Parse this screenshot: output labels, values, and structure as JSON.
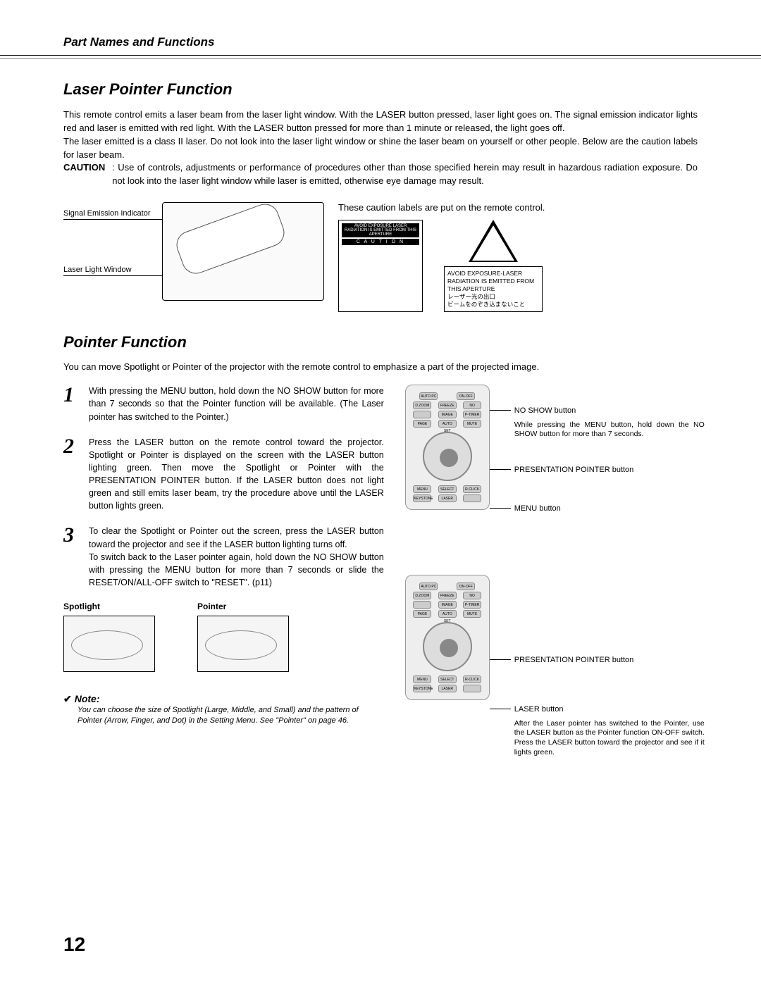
{
  "header": {
    "section": "Part Names and Functions"
  },
  "laser": {
    "title": "Laser Pointer Function",
    "para1": "This remote control emits a laser beam from the laser light window.  With the LASER button pressed, laser light goes on. The signal emission indicator lights red and laser is emitted with red light.  With the LASER button pressed for more than 1 minute or released, the light goes off.",
    "para2": "The laser emitted is a class II laser.  Do not look into the laser light window or shine the laser beam on yourself or other people.  Below are the caution labels for laser beam.",
    "caution_lead": "CAUTION",
    "caution_body": ": Use of controls, adjustments or performance of procedures other than those specified herein may result in hazardous radiation exposure.  Do not look into the laser light window while laser is emitted, otherwise eye damage may result.",
    "sig_label": "Signal Emission Indicator",
    "window_label": "Laser Light Window",
    "caution_label_text": "These caution labels are put on the remote control.",
    "sticker_top": "AVOID EXPOSURE LASER RADIATION IS EMITTED FROM THIS APERTURE",
    "sticker_band": "C A U T I O N",
    "triangle_text": "AVOID EXPOSURE-LASER RADIATION IS EMITTED FROM THIS APERTURE\nレーザー光の出口\nビームをのぞき込まないこと"
  },
  "pointer": {
    "title": "Pointer Function",
    "intro": "You can move Spotlight or Pointer of the projector with the remote control to emphasize a part of the projected image.",
    "steps": [
      {
        "n": "1",
        "text": "With pressing the MENU button, hold down the NO SHOW button for more than 7 seconds so that the Pointer function will be available. (The Laser pointer has switched to the Pointer.)"
      },
      {
        "n": "2",
        "text": "Press the LASER button on the remote control toward the projector. Spotlight or Pointer is displayed on the screen with the LASER button lighting green.  Then move the Spotlight or Pointer with the PRESENTATION POINTER button.  If the LASER button does not light green and still emits laser beam, try the procedure above until the LASER button lights green."
      },
      {
        "n": "3",
        "text": "To clear the Spotlight or Pointer out the screen, press the LASER button toward the projector and see if the LASER button lighting turns off.\nTo switch back to the Laser pointer again, hold down the NO SHOW button with pressing the MENU button for more than 7 seconds or slide the RESET/ON/ALL-OFF switch to \"RESET\".  (p11)"
      }
    ],
    "spotlight_label": "Spotlight",
    "pointer_label": "Pointer",
    "note_label": "Note:",
    "note_body": "You can choose the size of Spotlight (Large, Middle, and Small) and the pattern of Pointer (Arrow, Finger, and Dot) in the Setting Menu.  See \"Pointer\" on page 46."
  },
  "callouts": {
    "no_show": "NO SHOW button",
    "no_show_sub": "While pressing the MENU button, hold down the NO SHOW button for more than 7 seconds.",
    "pres_pointer": "PRESENTATION POINTER button",
    "menu": "MENU button",
    "laser": "LASER button",
    "laser_sub": "After the Laser pointer has switched to the Pointer, use the LASER button as the Pointer function ON-OFF switch. Press the LASER button toward the projector and see if it lights green."
  },
  "remote_buttons": {
    "r1": [
      "AUTO PC",
      "ON-OFF"
    ],
    "r2": [
      "D.ZOOM",
      "FREEZE",
      "NO SHOW"
    ],
    "r3": [
      "",
      "IMAGE",
      "P-TIMER"
    ],
    "r4": [
      "PAGE",
      "AUTO SET",
      "MUTE"
    ],
    "r5": [
      "MENU",
      "SELECT",
      "R-CLICK"
    ],
    "r6": [
      "KEYSTONE",
      "LASER",
      ""
    ]
  },
  "page_number": "12"
}
